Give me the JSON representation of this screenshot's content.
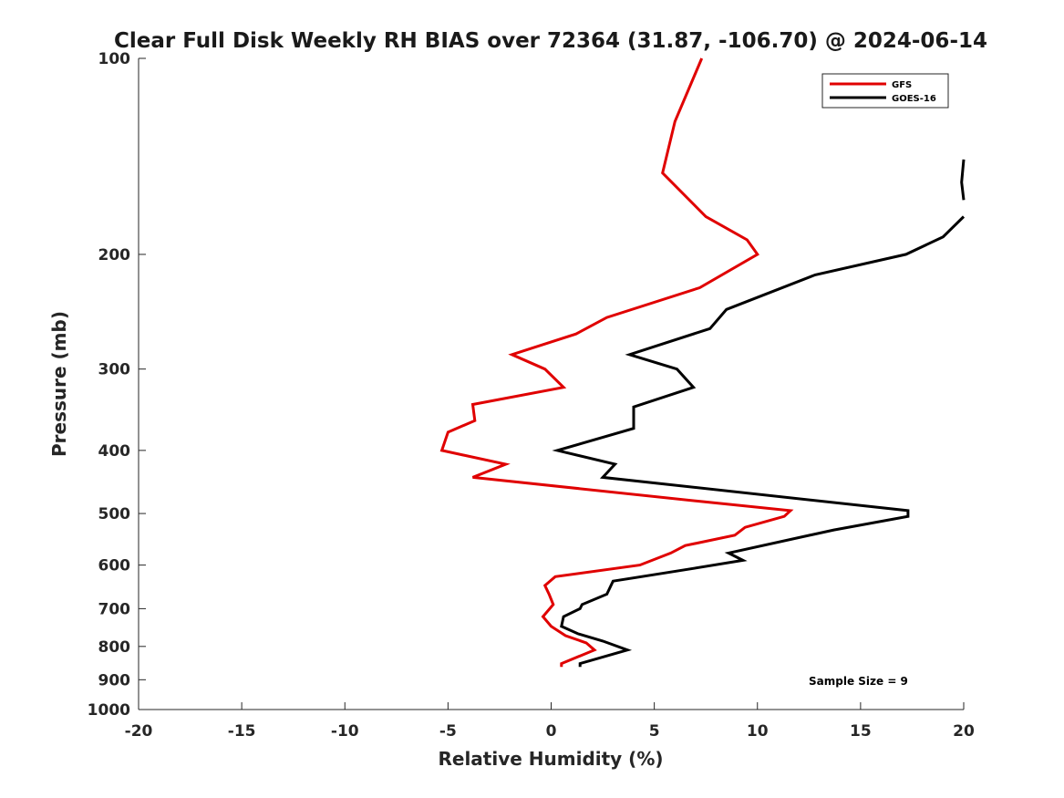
{
  "chart_data": {
    "type": "line",
    "title": "Clear Full Disk Weekly RH BIAS over 72364 (31.87, -106.70) @ 2024-06-14",
    "xlabel": "Relative Humidity (%)",
    "ylabel": "Pressure (mb)",
    "xlim": [
      -20,
      20
    ],
    "ylim": [
      100,
      1000
    ],
    "y_scale": "log",
    "y_reversed": true,
    "x_ticks": [
      -20,
      -15,
      -10,
      -5,
      0,
      5,
      10,
      15,
      20
    ],
    "x_tick_labels": [
      "-20",
      "-15",
      "-10",
      "-5",
      "0",
      "5",
      "10",
      "15",
      "20"
    ],
    "y_ticks": [
      100,
      200,
      300,
      400,
      500,
      600,
      700,
      800,
      900,
      1000
    ],
    "y_tick_labels": [
      "100",
      "200",
      "300",
      "400",
      "500",
      "600",
      "700",
      "800",
      "900",
      "1000"
    ],
    "grid": false,
    "legend_position": "top-right",
    "annotation": "Sample Size = 9",
    "series": [
      {
        "name": "GFS",
        "color": "#e00000",
        "points": [
          [
            7.3,
            100
          ],
          [
            6.0,
            125
          ],
          [
            5.4,
            150
          ],
          [
            7.5,
            175
          ],
          [
            9.5,
            190
          ],
          [
            10.0,
            200
          ],
          [
            7.2,
            225
          ],
          [
            2.7,
            250
          ],
          [
            1.2,
            265
          ],
          [
            -1.9,
            285
          ],
          [
            -0.3,
            300
          ],
          [
            0.6,
            320
          ],
          [
            -3.8,
            340
          ],
          [
            -3.7,
            360
          ],
          [
            -5.0,
            375
          ],
          [
            -5.3,
            400
          ],
          [
            -2.2,
            420
          ],
          [
            -3.8,
            440
          ],
          [
            7.5,
            480
          ],
          [
            11.6,
            495
          ],
          [
            11.3,
            505
          ],
          [
            9.4,
            525
          ],
          [
            8.9,
            540
          ],
          [
            6.5,
            560
          ],
          [
            5.8,
            575
          ],
          [
            4.3,
            600
          ],
          [
            0.2,
            625
          ],
          [
            -0.3,
            645
          ],
          [
            -0.1,
            665
          ],
          [
            0.1,
            690
          ],
          [
            -0.4,
            720
          ],
          [
            0.0,
            745
          ],
          [
            0.7,
            770
          ],
          [
            1.7,
            790
          ],
          [
            2.1,
            810
          ],
          [
            0.5,
            850
          ],
          [
            0.5,
            860
          ]
        ]
      },
      {
        "name": "GOES-16",
        "color": "#000000",
        "points_segments": [
          [
            [
              20.0,
              143
            ],
            [
              19.9,
              155
            ],
            [
              20.0,
              165
            ]
          ],
          [
            [
              20.0,
              175
            ],
            [
              19.0,
              188
            ],
            [
              17.2,
              200
            ],
            [
              12.8,
              215
            ],
            [
              8.5,
              243
            ],
            [
              7.7,
              260
            ],
            [
              3.8,
              285
            ],
            [
              6.1,
              300
            ],
            [
              6.9,
              320
            ],
            [
              4.0,
              343
            ],
            [
              4.0,
              370
            ],
            [
              0.3,
              400
            ],
            [
              3.1,
              420
            ],
            [
              2.5,
              440
            ],
            [
              17.3,
              495
            ],
            [
              17.3,
              505
            ],
            [
              13.7,
              530
            ],
            [
              8.6,
              575
            ],
            [
              9.3,
              590
            ],
            [
              6.5,
              610
            ],
            [
              3.0,
              635
            ],
            [
              2.7,
              665
            ],
            [
              1.5,
              690
            ],
            [
              1.4,
              700
            ],
            [
              0.6,
              720
            ],
            [
              0.5,
              745
            ],
            [
              1.3,
              765
            ],
            [
              2.5,
              785
            ],
            [
              3.7,
              810
            ],
            [
              1.4,
              850
            ],
            [
              1.4,
              860
            ]
          ]
        ]
      }
    ]
  }
}
